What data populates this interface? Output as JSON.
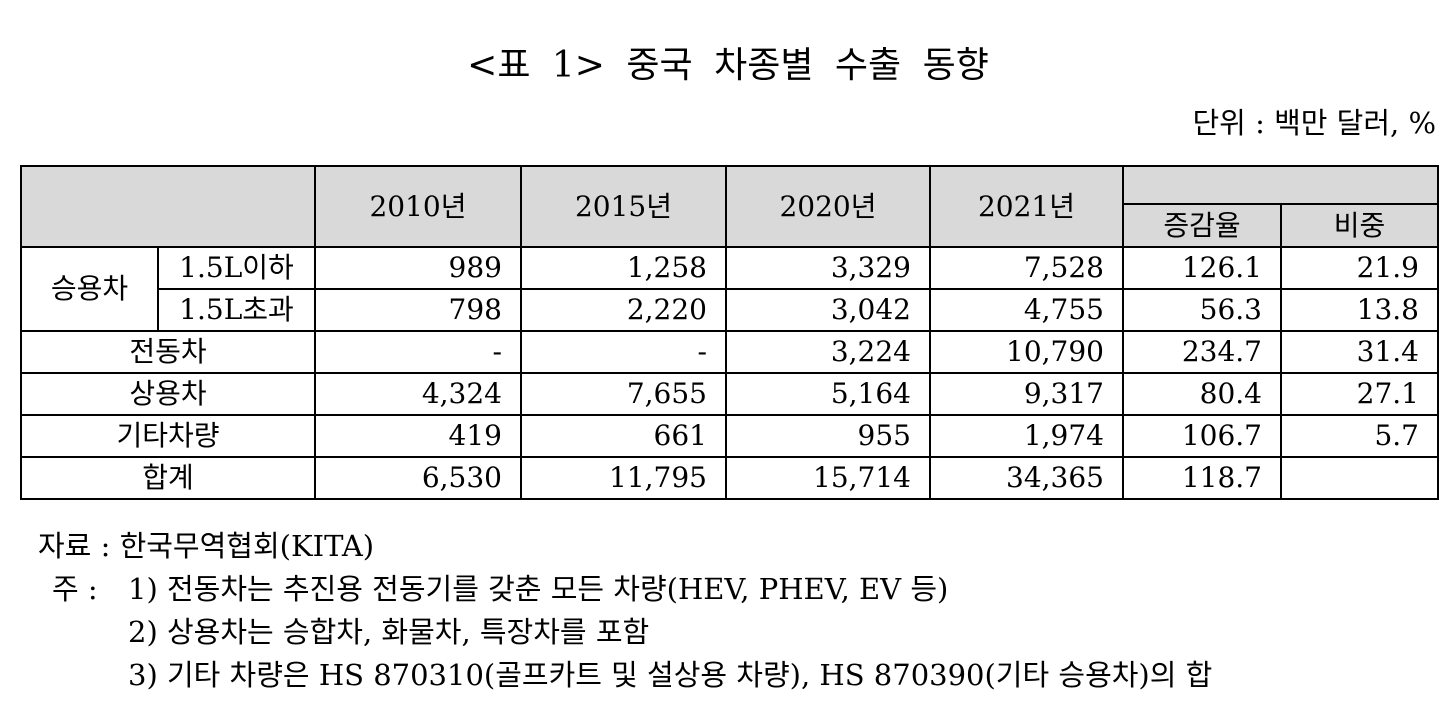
{
  "title": "<표 1> 중국 차종별 수출 동향",
  "unit": "단위 : 백만 달러, %",
  "table": {
    "header": [
      "2010년",
      "2015년",
      "2020년",
      "2021년",
      "증감율",
      "비중"
    ],
    "rows": [
      {
        "group": "승용차",
        "label": "1.5L이하",
        "cells": [
          "989",
          "1,258",
          "3,329",
          "7,528",
          "126.1",
          "21.9"
        ]
      },
      {
        "label": "1.5L초과",
        "cells": [
          "798",
          "2,220",
          "3,042",
          "4,755",
          "56.3",
          "13.8"
        ]
      },
      {
        "label": "전동차",
        "cells": [
          "-",
          "-",
          "3,224",
          "10,790",
          "234.7",
          "31.4"
        ]
      },
      {
        "label": "상용차",
        "cells": [
          "4,324",
          "7,655",
          "5,164",
          "9,317",
          "80.4",
          "27.1"
        ]
      },
      {
        "label": "기타차량",
        "cells": [
          "419",
          "661",
          "955",
          "1,974",
          "106.7",
          "5.7"
        ]
      },
      {
        "label": "합계",
        "cells": [
          "6,530",
          "11,795",
          "15,714",
          "34,365",
          "118.7"
        ]
      }
    ]
  },
  "source": "자료 : 한국무역협회(KITA)",
  "notes": {
    "label": "주 :",
    "items": [
      "1) 전동차는 추진용 전동기를 갖춘 모든 차량(HEV, PHEV, EV 등)",
      "2) 상용차는 승합차, 화물차, 특장차를 포함",
      "3) 기타 차량은 HS 870310(골프카트 및 설상용 차량), HS 870390(기타 승용차)의 합"
    ]
  }
}
